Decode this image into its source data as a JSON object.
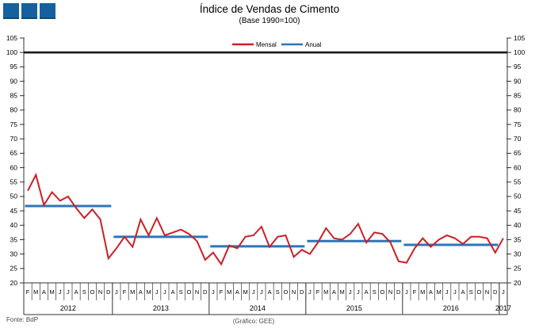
{
  "title": "Índice de Vendas de Cimento",
  "subtitle": "(Base 1990=100)",
  "logo": {
    "icon": "three-squares-logo",
    "color": "#15619e"
  },
  "legend": [
    {
      "label": "Mensal",
      "color": "#cc1f26"
    },
    {
      "label": "Anual",
      "color": "#2e75b6"
    }
  ],
  "footer": {
    "source": "Fonte: BdP",
    "credit": "(Gráfico: GEE)"
  },
  "chart_data": {
    "type": "line",
    "title": "Índice de Vendas de Cimento",
    "subtitle": "(Base 1990=100)",
    "ylim": [
      20,
      105
    ],
    "ytick_step": 5,
    "yticks": [
      20,
      25,
      30,
      35,
      40,
      45,
      50,
      55,
      60,
      65,
      70,
      75,
      80,
      85,
      90,
      95,
      100,
      105
    ],
    "grid": false,
    "legend_position": "top-center",
    "reference_line": {
      "value": 100,
      "color": "#1a1a1a"
    },
    "months": [
      "F",
      "M",
      "A",
      "M",
      "J",
      "J",
      "A",
      "S",
      "O",
      "N",
      "D",
      "J",
      "F",
      "M",
      "A",
      "M",
      "J",
      "J",
      "A",
      "S",
      "O",
      "N",
      "D",
      "J",
      "F",
      "M",
      "A",
      "M",
      "J",
      "J",
      "A",
      "S",
      "O",
      "N",
      "D",
      "J",
      "F",
      "M",
      "A",
      "M",
      "J",
      "J",
      "A",
      "S",
      "O",
      "N",
      "D",
      "J",
      "F",
      "M",
      "A",
      "M",
      "J",
      "J",
      "A",
      "S",
      "O",
      "N",
      "D",
      "J"
    ],
    "years": [
      {
        "label": "2012",
        "months": 11,
        "annual": 46.7
      },
      {
        "label": "2013",
        "months": 12,
        "annual": 36.0
      },
      {
        "label": "2014",
        "months": 12,
        "annual": 32.7
      },
      {
        "label": "2015",
        "months": 12,
        "annual": 34.5
      },
      {
        "label": "2016",
        "months": 12,
        "annual": 33.2
      },
      {
        "label": "2017",
        "months": 1,
        "annual": null
      }
    ],
    "series": [
      {
        "name": "Mensal",
        "color": "#cc1f26",
        "values": [
          52,
          57.5,
          47,
          51.5,
          48.5,
          50,
          46,
          42.5,
          45.5,
          42,
          28.5,
          32,
          36,
          32.5,
          42,
          36.5,
          42.5,
          36.5,
          37.5,
          38.5,
          37,
          34.5,
          28,
          30.5,
          26.5,
          33,
          32,
          36,
          36.5,
          39.5,
          32.5,
          36,
          36.5,
          29,
          31.5,
          30,
          34,
          39,
          35.5,
          35,
          37,
          40.5,
          34,
          37.5,
          37,
          34,
          27.5,
          27,
          32,
          35.5,
          32.5,
          35,
          36.5,
          35.5,
          33.5,
          36,
          36,
          35.5,
          30.5,
          35.5
        ]
      },
      {
        "name": "Anual",
        "color": "#2e75b6",
        "values_by_year": [
          46.7,
          36.0,
          32.7,
          34.5,
          33.2,
          null
        ]
      }
    ]
  }
}
